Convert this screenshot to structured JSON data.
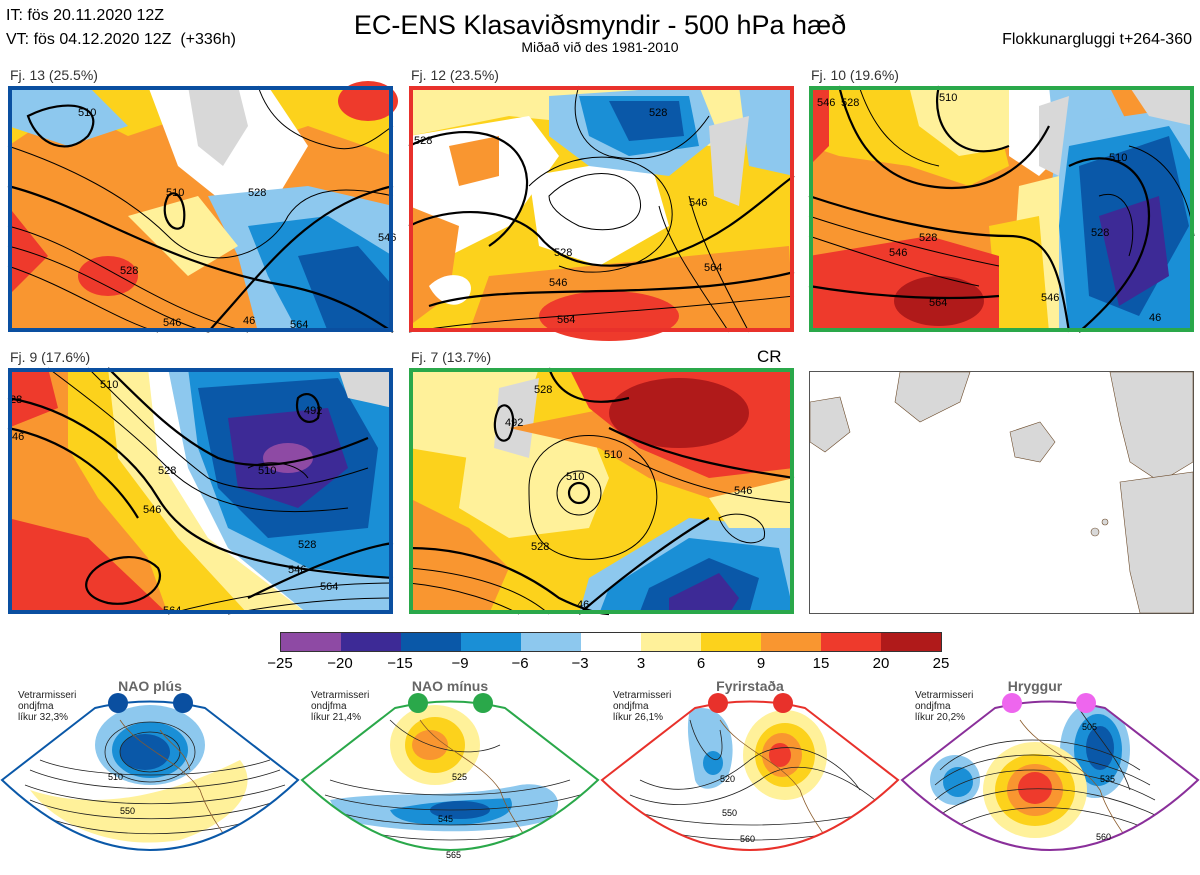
{
  "header": {
    "issue_time": "IT: fös 20.11.2020 12Z",
    "valid_time": "VT: fös 04.12.2020 12Z  (+336h)",
    "title": "EC-ENS Klasaviðsmyndir - 500 hPa hæð",
    "subtitle": "Miðað við des 1981-2010",
    "window": "Flokkunargluggi t+264-360"
  },
  "clusters": [
    {
      "label": "Fj. 13 (25.5%)",
      "regime": "NAO plús",
      "frame_color": "#0a4fa0",
      "contour_labels": [
        "510",
        "510",
        "528",
        "528",
        "546",
        "546",
        "46",
        "564"
      ]
    },
    {
      "label": "Fj. 12 (23.5%)",
      "regime": "NAO mínus",
      "frame_color": "#e8312b",
      "contour_labels": [
        "528",
        "528",
        "528",
        "546",
        "546",
        "564",
        "564"
      ]
    },
    {
      "label": "Fj. 10 (19.6%)",
      "regime": "Fyrirstaða",
      "frame_color": "#2aa84a",
      "contour_labels": [
        "546",
        "528",
        "510",
        "510",
        "528",
        "546",
        "528",
        "564",
        "546",
        "46"
      ]
    },
    {
      "label": "Fj. 9 (17.6%)",
      "regime": "NAO plús",
      "frame_color": "#0a4fa0",
      "contour_labels": [
        "28",
        "46",
        "510",
        "492",
        "510",
        "528",
        "546",
        "528",
        "546",
        "564",
        "564"
      ]
    },
    {
      "label": "Fj. 7 (13.7%)",
      "regime": "Fyrirstaða",
      "frame_color": "#2aa84a",
      "contour_labels": [
        "528",
        "492",
        "510",
        "510",
        "528",
        "546",
        "46"
      ],
      "corner_text": "CR"
    }
  ],
  "colorbar": {
    "colors": [
      "#8e4aa4",
      "#3d2a96",
      "#0a58a8",
      "#1a8fd6",
      "#8dc8ee",
      "#ffffff",
      "#fff19a",
      "#fcd21c",
      "#f99630",
      "#ee3a2c",
      "#b01a1a"
    ],
    "ticks": [
      "−25",
      "−20",
      "−15",
      "−9",
      "−6",
      "−3",
      "3",
      "6",
      "9",
      "15",
      "20",
      "25"
    ]
  },
  "regimes": [
    {
      "name": "NAO plús",
      "info": [
        "Vetrarmisseri",
        "ondjfma",
        "líkur 32,3%"
      ],
      "color": "#0a58a8",
      "dot_color": "#0a4fa0",
      "contour_labels": [
        "510",
        "550"
      ]
    },
    {
      "name": "NAO mínus",
      "info": [
        "Vetrarmisseri",
        "ondjfma",
        "líkur 21,4%"
      ],
      "color": "#2aa84a",
      "dot_color": "#2aa84a",
      "contour_labels": [
        "525",
        "545",
        "565"
      ]
    },
    {
      "name": "Fyrirstaða",
      "info": [
        "Vetrarmisseri",
        "ondjfma",
        "líkur 26,1%"
      ],
      "color": "#e8312b",
      "dot_color": "#e8312b",
      "contour_labels": [
        "520",
        "550",
        "560"
      ]
    },
    {
      "name": "Hryggur",
      "info": [
        "Vetrarmisseri",
        "ondjfma",
        "líkur 20,2%"
      ],
      "color": "#8a2f9a",
      "dot_color": "#ee66ee",
      "contour_labels": [
        "505",
        "535",
        "560"
      ]
    }
  ]
}
